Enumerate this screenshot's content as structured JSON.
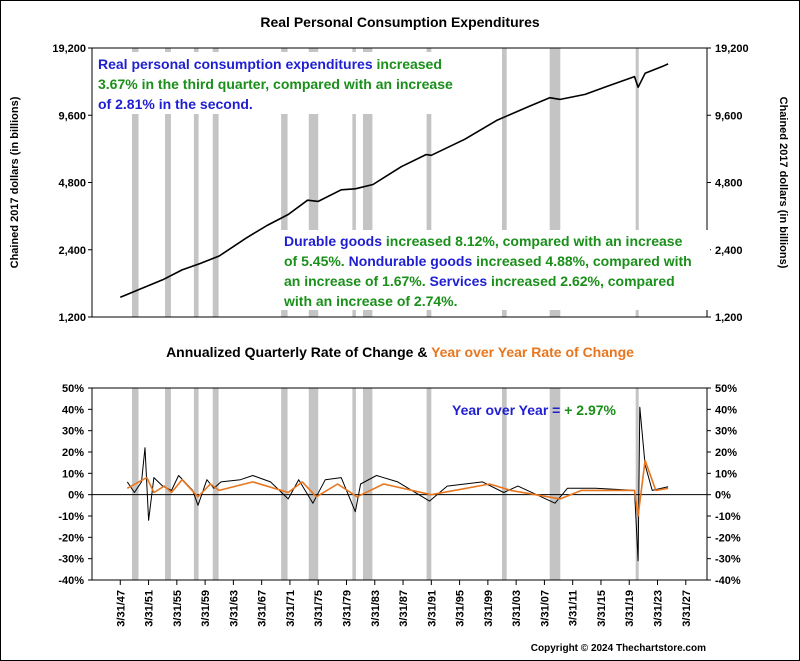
{
  "chart_data": [
    {
      "type": "line",
      "title": "Real Personal Consumption Expenditures",
      "ylabel": "Chained 2017 dollars (in billions)",
      "y_scale": "log",
      "yticks": [
        1200,
        2400,
        4800,
        9600,
        19200
      ],
      "ytick_labels": [
        "1,200",
        "2,400",
        "4,800",
        "9,600",
        "19,200"
      ],
      "ylim": [
        1200,
        19200
      ],
      "series": [
        {
          "color": "#000000",
          "points": [
            [
              "1947-03-31",
              1470
            ],
            [
              "1950-03-31",
              1610
            ],
            [
              "1953-03-31",
              1760
            ],
            [
              "1955-12-31",
              1950
            ],
            [
              "1958-06-30",
              2080
            ],
            [
              "1961-03-31",
              2250
            ],
            [
              "1964-12-31",
              2700
            ],
            [
              "1967-12-31",
              3080
            ],
            [
              "1970-12-31",
              3450
            ],
            [
              "1973-09-30",
              4000
            ],
            [
              "1975-03-31",
              3950
            ],
            [
              "1978-06-30",
              4450
            ],
            [
              "1980-06-30",
              4500
            ],
            [
              "1982-12-31",
              4700
            ],
            [
              "1986-12-31",
              5650
            ],
            [
              "1990-06-30",
              6400
            ],
            [
              "1991-03-31",
              6350
            ],
            [
              "1995-12-31",
              7500
            ],
            [
              "2000-06-30",
              9100
            ],
            [
              "2004-12-31",
              10500
            ],
            [
              "2007-12-31",
              11500
            ],
            [
              "2009-06-30",
              11300
            ],
            [
              "2012-12-31",
              11900
            ],
            [
              "2015-12-31",
              12900
            ],
            [
              "2019-12-31",
              14300
            ],
            [
              "2020-06-30",
              12800
            ],
            [
              "2021-06-30",
              14800
            ],
            [
              "2023-12-31",
              15900
            ],
            [
              "2024-09-30",
              16300
            ]
          ]
        }
      ],
      "annotations": [
        {
          "id": "top_note",
          "lines": [
            [
              [
                "Real personal consumption expenditures ",
                "#1f1fd1"
              ],
              [
                "increased",
                "#1a8f1a"
              ]
            ],
            [
              [
                "3.67% in the third quarter, compared with an ",
                "#1a8f1a"
              ],
              [
                "increase",
                "#1a8f1a"
              ]
            ],
            [
              [
                "of 2.81% in the second.",
                "#1f1fd1"
              ]
            ]
          ]
        },
        {
          "id": "mid_note",
          "lines": [
            [
              [
                "Durable goods ",
                "#1f1fd1"
              ],
              [
                "increased 8.12%, compared with an increase",
                "#1a8f1a"
              ]
            ],
            [
              [
                "of 5.45%.  ",
                "#1a8f1a"
              ],
              [
                "Nondurable goods ",
                "#1f1fd1"
              ],
              [
                "increased 4.88%, compared with",
                "#1a8f1a"
              ]
            ],
            [
              [
                "an increase of 1.67%.  ",
                "#1a8f1a"
              ],
              [
                "Services ",
                "#1f1fd1"
              ],
              [
                "increased 2.62%, compared",
                "#1a8f1a"
              ]
            ],
            [
              [
                "with an increase of 2.74%.",
                "#1a8f1a"
              ]
            ]
          ]
        }
      ]
    },
    {
      "type": "line",
      "title_parts": [
        [
          "Annualized Quarterly Rate of Change & ",
          "#000000"
        ],
        [
          "Year over Year Rate of Change",
          "#e8761e"
        ]
      ],
      "yticks": [
        -40,
        -30,
        -20,
        -10,
        0,
        10,
        20,
        30,
        40,
        50
      ],
      "ytick_labels": [
        "-40%",
        "-30%",
        "-20%",
        "-10%",
        "0%",
        "10%",
        "20%",
        "30%",
        "40%",
        "50%"
      ],
      "ylim": [
        -40,
        50
      ],
      "series": [
        {
          "color": "#000000",
          "points": [
            [
              "1948-03-31",
              6
            ],
            [
              "1949-03-31",
              1
            ],
            [
              "1950-03-31",
              6
            ],
            [
              "1950-09-30",
              22
            ],
            [
              "1951-03-31",
              -12
            ],
            [
              "1951-12-31",
              8
            ],
            [
              "1953-03-31",
              4
            ],
            [
              "1954-06-30",
              2
            ],
            [
              "1955-06-30",
              9
            ],
            [
              "1957-06-30",
              2
            ],
            [
              "1958-03-31",
              -5
            ],
            [
              "1959-06-30",
              7
            ],
            [
              "1960-06-30",
              3
            ],
            [
              "1961-06-30",
              6
            ],
            [
              "1964-03-31",
              7
            ],
            [
              "1965-12-31",
              9
            ],
            [
              "1968-06-30",
              6
            ],
            [
              "1970-12-31",
              -2
            ],
            [
              "1972-06-30",
              7
            ],
            [
              "1974-06-30",
              -4
            ],
            [
              "1976-03-31",
              7
            ],
            [
              "1978-06-30",
              8
            ],
            [
              "1980-06-30",
              -8
            ],
            [
              "1981-03-31",
              5
            ],
            [
              "1983-06-30",
              9
            ],
            [
              "1986-06-30",
              6
            ],
            [
              "1990-12-31",
              -3
            ],
            [
              "1993-06-30",
              4
            ],
            [
              "1998-06-30",
              6
            ],
            [
              "2001-06-30",
              1
            ],
            [
              "2003-06-30",
              4
            ],
            [
              "2008-09-30",
              -4
            ],
            [
              "2010-06-30",
              3
            ],
            [
              "2014-06-30",
              3
            ],
            [
              "2019-12-31",
              2
            ],
            [
              "2020-06-30",
              -31
            ],
            [
              "2020-09-30",
              41
            ],
            [
              "2021-06-30",
              14
            ],
            [
              "2022-06-30",
              2
            ],
            [
              "2024-09-30",
              3.67
            ]
          ]
        },
        {
          "color": "#e8761e",
          "points": [
            [
              "1948-03-31",
              3
            ],
            [
              "1950-12-31",
              8
            ],
            [
              "1951-12-31",
              1
            ],
            [
              "1953-06-30",
              4
            ],
            [
              "1954-06-30",
              1
            ],
            [
              "1955-12-31",
              7
            ],
            [
              "1958-03-31",
              -1
            ],
            [
              "1959-12-31",
              5
            ],
            [
              "1961-03-31",
              2
            ],
            [
              "1965-12-31",
              6
            ],
            [
              "1970-12-31",
              1
            ],
            [
              "1972-12-31",
              6
            ],
            [
              "1974-12-31",
              -1
            ],
            [
              "1977-12-31",
              5
            ],
            [
              "1980-09-30",
              -1
            ],
            [
              "1984-06-30",
              5
            ],
            [
              "1991-03-31",
              0
            ],
            [
              "1999-06-30",
              5
            ],
            [
              "2002-06-30",
              2
            ],
            [
              "2009-06-30",
              -2
            ],
            [
              "2012-06-30",
              2
            ],
            [
              "2019-12-31",
              2
            ],
            [
              "2020-06-30",
              -10
            ],
            [
              "2021-06-30",
              16
            ],
            [
              "2022-12-31",
              2
            ],
            [
              "2024-09-30",
              2.97
            ]
          ]
        }
      ],
      "annotations": [
        {
          "id": "yoy_note",
          "lines": [
            [
              [
                "Year over Year = ",
                "#1f1fd1"
              ],
              [
                "+ 2.97%",
                "#1a8f1a"
              ]
            ]
          ]
        }
      ]
    }
  ],
  "x_axis": {
    "tick_labels": [
      "3/31/47",
      "3/31/51",
      "3/31/55",
      "3/31/59",
      "3/31/63",
      "3/31/67",
      "3/31/71",
      "3/31/75",
      "3/31/79",
      "3/31/83",
      "3/31/87",
      "3/31/91",
      "3/31/95",
      "3/31/99",
      "3/31/03",
      "3/31/07",
      "3/31/11",
      "3/31/15",
      "3/31/19",
      "3/31/23",
      "3/31/27"
    ],
    "tick_dates": [
      "1947-03-31",
      "1951-03-31",
      "1955-03-31",
      "1959-03-31",
      "1963-03-31",
      "1967-03-31",
      "1971-03-31",
      "1975-03-31",
      "1979-03-31",
      "1983-03-31",
      "1987-03-31",
      "1991-03-31",
      "1995-03-31",
      "1999-03-31",
      "2003-03-31",
      "2007-03-31",
      "2011-03-31",
      "2015-03-31",
      "2019-03-31",
      "2023-03-31",
      "2027-03-31"
    ]
  },
  "recessions": [
    [
      "1948-11-30",
      "1949-10-31"
    ],
    [
      "1953-07-31",
      "1954-05-31"
    ],
    [
      "1957-08-31",
      "1958-04-30"
    ],
    [
      "1960-04-30",
      "1961-02-28"
    ],
    [
      "1969-12-31",
      "1970-11-30"
    ],
    [
      "1973-11-30",
      "1975-03-31"
    ],
    [
      "1980-01-31",
      "1980-07-31"
    ],
    [
      "1981-07-31",
      "1982-11-30"
    ],
    [
      "1990-07-31",
      "1991-03-31"
    ],
    [
      "2001-03-31",
      "2001-11-30"
    ],
    [
      "2007-12-31",
      "2009-06-30"
    ],
    [
      "2020-02-29",
      "2020-04-30"
    ]
  ],
  "colors": {
    "recession": "#c4c4c4",
    "border": "#000000"
  },
  "copyright": "Copyright © 2024 Thechartstore.com"
}
